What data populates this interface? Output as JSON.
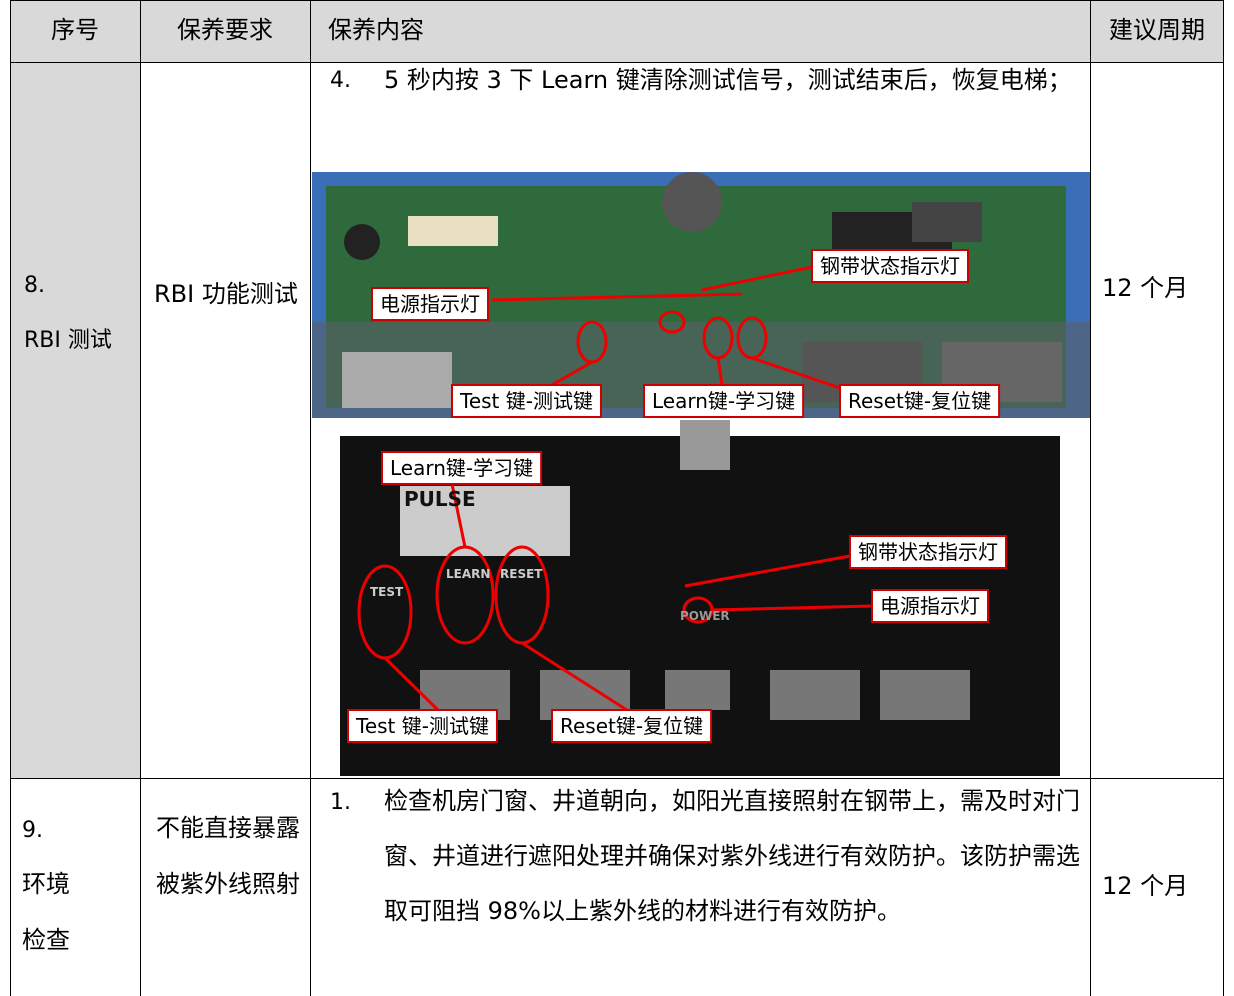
{
  "header": [
    "序号",
    "保养要求",
    "保养内容",
    "建议周期"
  ],
  "rows": [
    {
      "no": [
        "8.",
        "RBI 测试"
      ],
      "requirement": "RBI 功能测试",
      "content": {
        "index": "4.",
        "text": "5 秒内按 3 下 Learn 键清除测试信号，测试结束后，恢复电梯；"
      },
      "photo1": {
        "labels": [
          "钢带状态指示灯",
          "电源指示灯",
          "Test 键-测试键",
          "Learn键-学习键",
          "Reset键-复位键"
        ]
      },
      "photo2": {
        "labels": [
          "Learn键-学习键",
          "钢带状态指示灯",
          "电源指示灯",
          "Test 键-测试键",
          "Reset键-复位键"
        ],
        "board_text": [
          "PULSE",
          "TEST",
          "LEARN",
          "RESET",
          "POWER"
        ]
      },
      "period": "12 个月"
    },
    {
      "no": [
        "9.",
        "环境",
        "检查"
      ],
      "requirement": "不能直接暴露被紫外线照射",
      "content": {
        "index": "1.",
        "text": "检查机房门窗、井道朝向，如阳光直接照射在钢带上，需及时对门窗、井道进行遮阳处理并确保对紫外线进行有效防护。该防护需选取可阻挡 98%以上紫外线的材料进行有效防护。"
      },
      "period": "12 个月"
    }
  ]
}
